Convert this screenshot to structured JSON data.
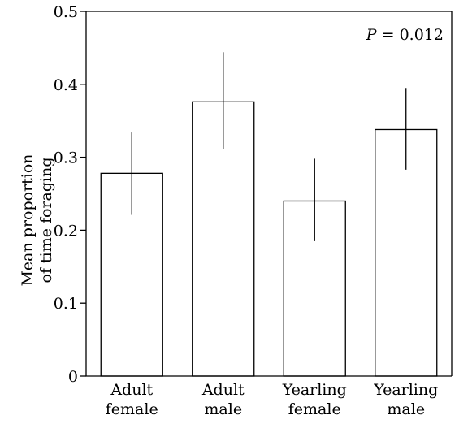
{
  "chart_data": {
    "type": "bar",
    "title": "",
    "xlabel": "",
    "ylabel": "Mean proportion of time foraging",
    "ylabel_lines": [
      "Mean proportion",
      "of time foraging"
    ],
    "ylim": [
      0,
      0.5
    ],
    "yticks": [
      0,
      0.1,
      0.2,
      0.3,
      0.4,
      0.5
    ],
    "ytick_labels": [
      "0",
      "0.1",
      "0.2",
      "0.3",
      "0.4",
      "0.5"
    ],
    "categories": [
      "Adult female",
      "Adult male",
      "Yearling female",
      "Yearling male"
    ],
    "category_lines": [
      [
        "Adult",
        "female"
      ],
      [
        "Adult",
        "male"
      ],
      [
        "Yearling",
        "female"
      ],
      [
        "Yearling",
        "male"
      ]
    ],
    "values": [
      0.278,
      0.376,
      0.24,
      0.338
    ],
    "error_low": [
      0.221,
      0.311,
      0.185,
      0.283
    ],
    "error_high": [
      0.334,
      0.444,
      0.298,
      0.395
    ],
    "bar_color": "#ffffff",
    "edge_color": "#000000",
    "grid": false,
    "annotation": {
      "p_symbol": "P",
      "p_rest": " = 0.012",
      "text": "P = 0.012",
      "placement": "top-right"
    }
  }
}
